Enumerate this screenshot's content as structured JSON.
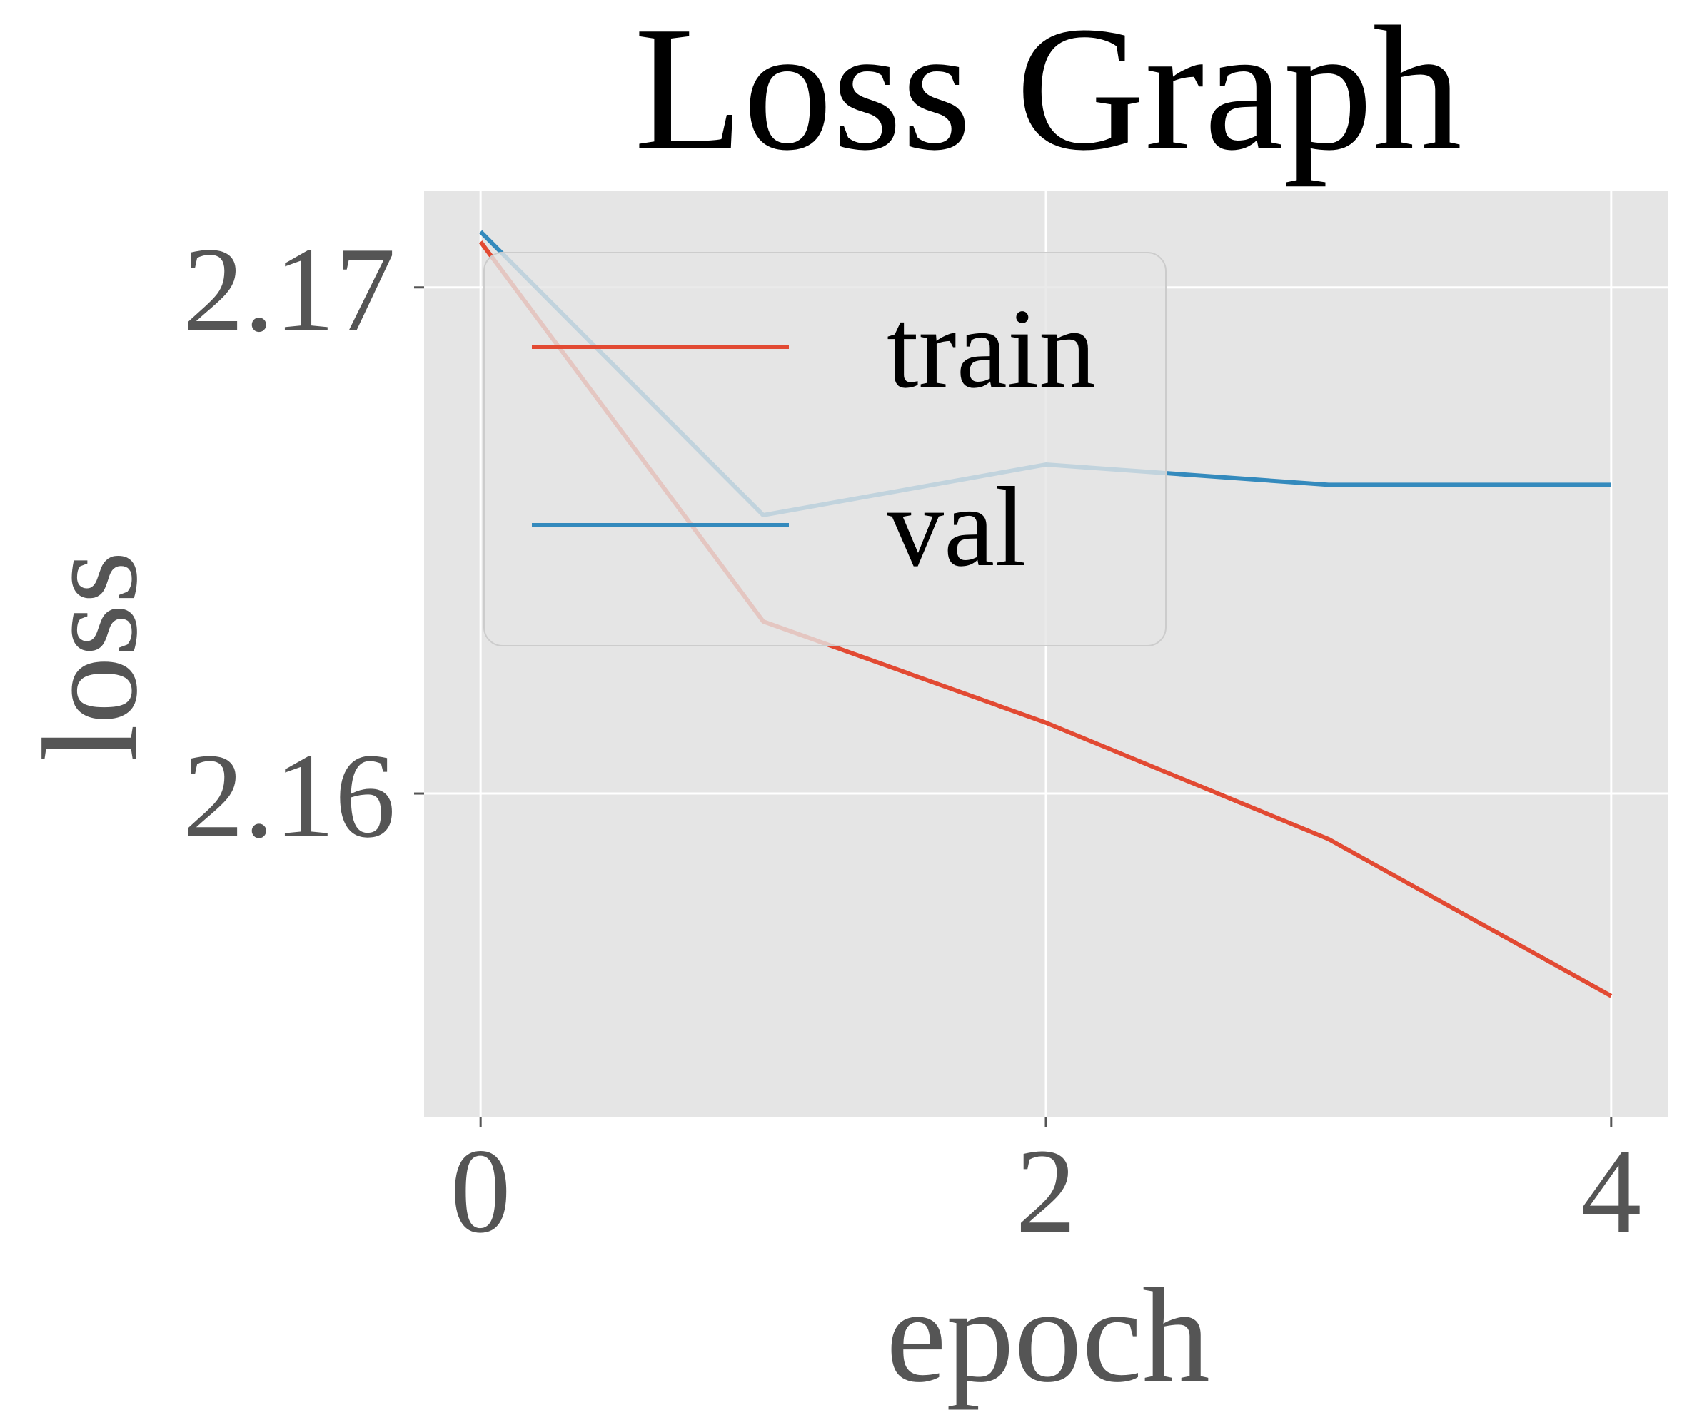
{
  "chart_data": {
    "type": "line",
    "title": "Loss Graph",
    "xlabel": "epoch",
    "ylabel": "loss",
    "x": [
      0,
      1,
      2,
      3,
      4
    ],
    "xlim": [
      -0.2,
      4.2
    ],
    "ylim": [
      2.1536,
      2.1719
    ],
    "xticks": [
      0,
      2,
      4
    ],
    "xtick_labels": [
      "0",
      "2",
      "4"
    ],
    "yticks": [
      2.16,
      2.17
    ],
    "ytick_labels": [
      "2.16",
      "2.17"
    ],
    "grid": true,
    "legend_position": "upper-left",
    "series": [
      {
        "name": "train",
        "color": "#E24A33",
        "values": [
          2.1709,
          2.1634,
          2.1614,
          2.1591,
          2.156
        ]
      },
      {
        "name": "val",
        "color": "#348ABD",
        "values": [
          2.1711,
          2.1655,
          2.1665,
          2.1661,
          2.1661
        ]
      }
    ],
    "style": {
      "plot_background": "#E5E5E5",
      "grid_color": "#FFFFFF",
      "tick_color": "#555555"
    }
  }
}
